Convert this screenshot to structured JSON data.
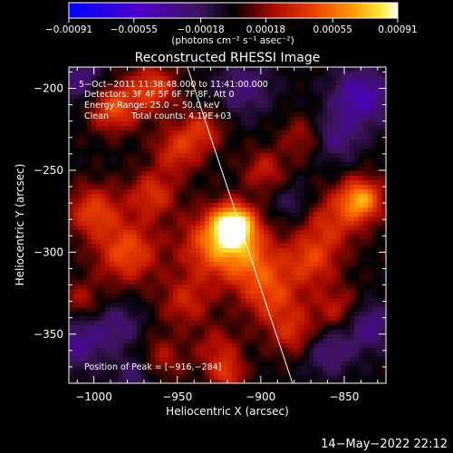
{
  "chart_data": {
    "type": "heatmap",
    "title": "Reconstructed RHESSI Image",
    "xlabel": "Heliocentric X (arcsec)",
    "ylabel": "Heliocentric Y (arcsec)",
    "xlim": [
      -1015,
      -825
    ],
    "ylim": [
      -380,
      -187
    ],
    "xticks": [
      -1000,
      -950,
      -900,
      -850
    ],
    "xtick_labels": [
      "−1000",
      "−950",
      "−900",
      "−850"
    ],
    "yticks": [
      -200,
      -250,
      -300,
      -350
    ],
    "ytick_labels": [
      "−200",
      "−250",
      "−300",
      "−350"
    ],
    "colorbar": {
      "min": -0.00091,
      "max": 0.00091,
      "tick_values": [
        -0.00091,
        -0.00055,
        -0.00018,
        0.00018,
        0.00055,
        0.00091
      ],
      "tick_labels": [
        "−0.00091",
        "−0.00055",
        "−0.00018",
        "0.00018",
        "0.00055",
        "0.00091"
      ],
      "unit_label": "(photons cm⁻² s⁻¹ asec⁻²)"
    },
    "annotations": {
      "time_range": "5−Oct−2011 11:38:48.000 to 11:41:00.000",
      "detectors": "Detectors: 3F 4F 5F 6F 7F 8F, Att 0",
      "energy": "Energy Range: 25.0 − 50.0 keV",
      "method": "Clean",
      "counts": "Total counts: 4.19E+03",
      "peak": "Position of Peak = [−916,−284]"
    },
    "peak": [
      -916,
      -284
    ],
    "limb_line": [
      [
        -944,
        -187
      ],
      [
        -881,
        -380
      ]
    ],
    "map_sources": [
      {
        "x": -916,
        "y": -284,
        "a": 1.0,
        "s": 9
      },
      {
        "x": -928,
        "y": -296,
        "a": 0.55,
        "s": 14
      },
      {
        "x": -905,
        "y": -306,
        "a": 0.45,
        "s": 13
      },
      {
        "x": -893,
        "y": -328,
        "a": 0.4,
        "s": 12
      },
      {
        "x": -840,
        "y": -268,
        "a": 0.72,
        "s": 9
      },
      {
        "x": -858,
        "y": -282,
        "a": 0.35,
        "s": 12
      },
      {
        "x": -988,
        "y": -212,
        "a": 0.5,
        "s": 10
      },
      {
        "x": -965,
        "y": -200,
        "a": 0.45,
        "s": 10
      },
      {
        "x": -1000,
        "y": -275,
        "a": 0.45,
        "s": 11
      },
      {
        "x": -980,
        "y": -300,
        "a": 0.5,
        "s": 13
      },
      {
        "x": -965,
        "y": -265,
        "a": 0.4,
        "s": 10
      },
      {
        "x": -950,
        "y": -238,
        "a": 0.38,
        "s": 10
      },
      {
        "x": -935,
        "y": -225,
        "a": 0.35,
        "s": 9
      },
      {
        "x": -870,
        "y": -305,
        "a": 0.42,
        "s": 11
      },
      {
        "x": -880,
        "y": -350,
        "a": 0.35,
        "s": 10
      },
      {
        "x": -855,
        "y": -335,
        "a": 0.3,
        "s": 10
      },
      {
        "x": -945,
        "y": -330,
        "a": 0.32,
        "s": 11
      },
      {
        "x": -960,
        "y": -365,
        "a": 0.25,
        "s": 10
      },
      {
        "x": -925,
        "y": -360,
        "a": 0.28,
        "s": 10
      },
      {
        "x": -898,
        "y": -250,
        "a": 0.3,
        "s": 9
      },
      {
        "x": -875,
        "y": -230,
        "a": 0.25,
        "s": 9
      },
      {
        "x": -920,
        "y": -375,
        "a": 0.35,
        "s": 7
      },
      {
        "x": -1008,
        "y": -330,
        "a": 0.25,
        "s": 9
      },
      {
        "x": -840,
        "y": -205,
        "a": -0.5,
        "s": 12
      },
      {
        "x": -855,
        "y": -230,
        "a": -0.3,
        "s": 10
      },
      {
        "x": -910,
        "y": -200,
        "a": -0.28,
        "s": 12
      },
      {
        "x": -1008,
        "y": -195,
        "a": -0.3,
        "s": 10
      },
      {
        "x": -1010,
        "y": -355,
        "a": -0.35,
        "s": 12
      },
      {
        "x": -985,
        "y": -345,
        "a": -0.25,
        "s": 10
      },
      {
        "x": -860,
        "y": -360,
        "a": -0.3,
        "s": 11
      },
      {
        "x": -835,
        "y": -345,
        "a": -0.35,
        "s": 10
      },
      {
        "x": -975,
        "y": -375,
        "a": -0.25,
        "s": 9
      },
      {
        "x": -880,
        "y": -270,
        "a": -0.2,
        "s": 8
      }
    ]
  },
  "footer": {
    "timestamp": "14−May−2022 22:12"
  }
}
